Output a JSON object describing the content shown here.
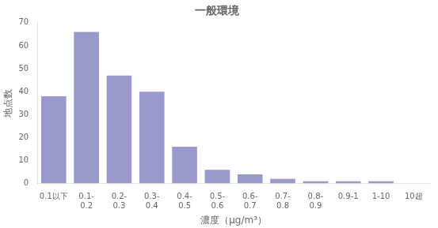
{
  "chart_data": {
    "type": "bar",
    "title": "一般環境",
    "categories": [
      "0.1以下",
      "0.1-\n0.2",
      "0.2-\n0.3",
      "0.3-\n0.4",
      "0.4-\n0.5",
      "0.5-\n0.6",
      "0.6-\n0.7",
      "0.7-\n0.8",
      "0.8-\n0.9",
      "0.9-1",
      "1-10",
      "10超"
    ],
    "values": [
      38,
      66,
      47,
      40,
      16,
      6,
      4,
      2,
      1,
      1,
      1,
      0
    ],
    "color": "#9999cc",
    "xlabel": "濃度（μg/m³）",
    "ylabel": "地点数",
    "ylim": [
      0,
      70
    ],
    "yticks": [
      0,
      10,
      20,
      30,
      40,
      50,
      60,
      70
    ],
    "grid": false
  }
}
